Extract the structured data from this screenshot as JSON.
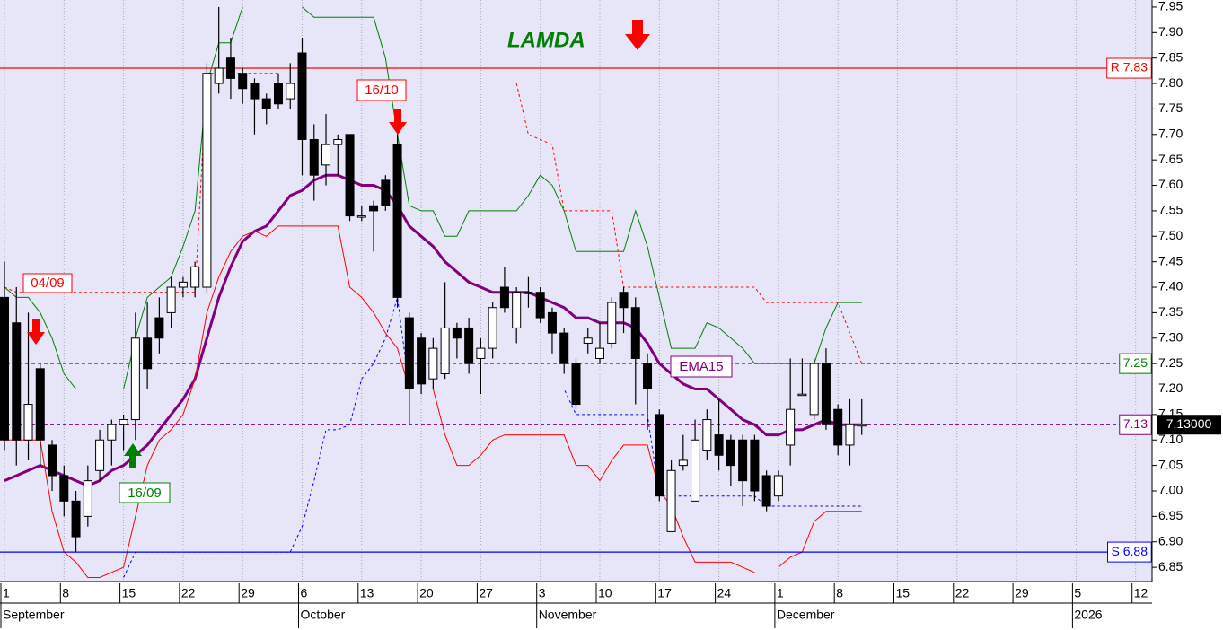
{
  "chart_data": {
    "type": "candlestick",
    "title": "LAMDA",
    "ylim": [
      6.822,
      7.964
    ],
    "yticks": [
      6.85,
      {
        "value": 6.9,
        "label": "6.90"
      },
      6.95,
      {
        "value": 7,
        "label": "7.00"
      },
      7.05,
      {
        "value": 7.1,
        "label": "7.10"
      },
      7.15,
      {
        "value": 7.2,
        "label": "7.20"
      },
      7.25,
      {
        "value": 7.3,
        "label": "7.30"
      },
      7.35,
      {
        "value": 7.4,
        "label": "7.40"
      },
      7.45,
      {
        "value": 7.5,
        "label": "7.50"
      },
      7.55,
      {
        "value": 7.6,
        "label": "7.60"
      },
      7.65,
      {
        "value": 7.7,
        "label": "7.70"
      },
      7.75,
      {
        "value": 7.8,
        "label": "7.80"
      },
      7.85,
      {
        "value": 7.9,
        "label": "7.90"
      },
      7.95
    ],
    "x_axis": [
      {
        "month": "September",
        "days": [
          "1",
          "8",
          "15",
          "22",
          "29"
        ]
      },
      {
        "month": "October",
        "days": [
          "6",
          "13",
          "20",
          "27"
        ]
      },
      {
        "month": "November",
        "days": [
          "3",
          "10",
          "17",
          "24"
        ]
      },
      {
        "month": "December",
        "days": [
          "1",
          "8",
          "15",
          "22",
          "29"
        ]
      },
      {
        "month": "2026",
        "days": [
          "5",
          "12"
        ]
      }
    ],
    "candles": {
      "open": [
        7.38,
        7.33,
        7.1,
        7.24,
        7.09,
        7.03,
        6.98,
        6.95,
        7.04,
        7.1,
        7.13,
        7.14,
        7.3,
        7.34,
        7.35,
        7.4,
        7.4,
        7.4,
        7.8,
        7.85,
        7.82,
        7.8,
        7.77,
        7.8,
        7.77,
        7.86,
        7.69,
        7.64,
        7.68,
        7.7,
        7.54,
        7.56,
        7.61,
        7.68,
        7.34,
        7.3,
        7.22,
        7.23,
        7.32,
        7.32,
        7.26,
        7.28,
        7.4,
        7.32,
        7.39,
        7.39,
        7.35,
        7.31,
        7.25,
        7.29,
        7.26,
        7.29,
        7.39,
        7.36,
        7.25,
        7.15,
        6.92,
        7.05,
        6.98,
        7.08,
        7.11,
        7.1,
        7.1,
        7.1,
        7.03,
        6.99,
        7.09,
        7.19,
        7.15,
        7.25,
        7.16,
        7.09,
        7.13
      ],
      "high": [
        7.45,
        7.4,
        7.35,
        7.25,
        7.1,
        7.05,
        7.0,
        7.05,
        7.12,
        7.14,
        7.15,
        7.35,
        7.37,
        7.38,
        7.42,
        7.42,
        7.45,
        7.84,
        7.95,
        7.89,
        7.83,
        7.81,
        7.78,
        7.82,
        7.84,
        7.89,
        7.72,
        7.74,
        7.7,
        7.7,
        7.56,
        7.57,
        7.62,
        7.7,
        7.35,
        7.31,
        7.3,
        7.41,
        7.33,
        7.34,
        7.3,
        7.37,
        7.44,
        7.4,
        7.42,
        7.4,
        7.36,
        7.32,
        7.26,
        7.32,
        7.33,
        7.38,
        7.4,
        7.38,
        7.27,
        7.16,
        7.06,
        7.11,
        7.14,
        7.16,
        7.18,
        7.11,
        7.11,
        7.11,
        7.04,
        7.04,
        7.26,
        7.26,
        7.26,
        7.28,
        7.17,
        7.18,
        7.18
      ],
      "low": [
        7.08,
        7.05,
        7.06,
        7.05,
        7.0,
        6.95,
        6.88,
        6.93,
        7.02,
        7.05,
        7.08,
        7.1,
        7.2,
        7.27,
        7.32,
        7.38,
        7.38,
        7.39,
        7.78,
        7.77,
        7.76,
        7.7,
        7.72,
        7.75,
        7.75,
        7.62,
        7.57,
        7.6,
        7.62,
        7.53,
        7.53,
        7.47,
        7.55,
        7.36,
        7.13,
        7.19,
        7.2,
        7.22,
        7.26,
        7.23,
        7.19,
        7.26,
        7.35,
        7.29,
        7.36,
        7.33,
        7.27,
        7.23,
        7.16,
        7.27,
        7.25,
        7.28,
        7.31,
        7.17,
        7.12,
        6.98,
        6.92,
        7.04,
        6.98,
        7.06,
        7.04,
        7.01,
        6.97,
        6.98,
        6.96,
        6.98,
        7.05,
        7.19,
        7.14,
        7.12,
        7.07,
        7.05,
        7.11
      ],
      "close": [
        7.1,
        7.1,
        7.17,
        7.1,
        7.03,
        6.98,
        6.91,
        7.02,
        7.1,
        7.13,
        7.14,
        7.3,
        7.24,
        7.3,
        7.4,
        7.41,
        7.44,
        7.82,
        7.83,
        7.81,
        7.79,
        7.77,
        7.75,
        7.76,
        7.8,
        7.69,
        7.62,
        7.68,
        7.69,
        7.54,
        7.54,
        7.55,
        7.56,
        7.38,
        7.2,
        7.21,
        7.28,
        7.32,
        7.3,
        7.25,
        7.28,
        7.36,
        7.36,
        7.39,
        7.39,
        7.34,
        7.31,
        7.25,
        7.17,
        7.3,
        7.28,
        7.37,
        7.36,
        7.26,
        7.2,
        6.99,
        7.04,
        7.06,
        7.1,
        7.14,
        7.07,
        7.05,
        7.02,
        7.0,
        6.97,
        7.03,
        7.16,
        7.19,
        7.25,
        7.13,
        7.09,
        7.13,
        7.13
      ]
    },
    "series": [
      {
        "name": "EMA15",
        "color": "#800080",
        "width": 3,
        "dash": false,
        "values": [
          7.02,
          7.03,
          7.04,
          7.05,
          7.04,
          7.03,
          7.02,
          7.01,
          7.02,
          7.04,
          7.05,
          7.07,
          7.09,
          7.12,
          7.15,
          7.18,
          7.22,
          7.3,
          7.38,
          7.44,
          7.49,
          7.51,
          7.52,
          7.55,
          7.58,
          7.59,
          7.61,
          7.62,
          7.62,
          7.61,
          7.6,
          7.6,
          7.59,
          7.56,
          7.52,
          7.5,
          7.48,
          7.45,
          7.43,
          7.41,
          7.4,
          7.39,
          7.39,
          7.39,
          7.39,
          7.38,
          7.37,
          7.36,
          7.34,
          7.34,
          7.33,
          7.33,
          7.33,
          7.32,
          7.29,
          7.25,
          7.23,
          7.21,
          7.2,
          7.2,
          7.18,
          7.16,
          7.14,
          7.13,
          7.11,
          7.11,
          7.12,
          7.12,
          7.13,
          7.14,
          7.13,
          7.13,
          7.13
        ]
      },
      {
        "color": "#008000",
        "width": 1,
        "dash": false,
        "values": [
          7.4,
          7.38,
          7.38,
          7.35,
          7.3,
          7.23,
          7.2,
          7.2,
          7.2,
          7.2,
          7.2,
          7.3,
          7.38,
          7.4,
          7.42,
          7.48,
          7.55,
          7.8,
          7.88,
          7.88,
          7.95,
          null,
          null,
          null,
          null,
          7.95,
          7.93,
          7.93,
          7.93,
          7.93,
          7.93,
          7.93,
          7.85,
          7.7,
          7.56,
          7.55,
          7.55,
          7.5,
          7.5,
          7.55,
          7.55,
          7.55,
          7.55,
          7.55,
          7.58,
          7.62,
          7.6,
          7.55,
          7.47,
          7.47,
          7.47,
          7.47,
          7.47,
          7.55,
          7.48,
          7.38,
          7.28,
          7.28,
          7.28,
          7.33,
          7.32,
          7.3,
          7.28,
          7.25,
          7.25,
          7.25,
          7.25,
          7.25,
          7.25,
          7.32,
          7.37,
          7.37,
          7.37
        ]
      },
      {
        "color": "#ff0000",
        "width": 1,
        "dash": false,
        "values": [
          7.1,
          7.1,
          7.1,
          7.1,
          6.96,
          6.88,
          6.86,
          6.83,
          6.83,
          6.84,
          6.85,
          6.95,
          7.05,
          7.1,
          7.12,
          7.15,
          7.22,
          7.35,
          7.42,
          7.47,
          7.5,
          7.51,
          7.5,
          7.52,
          7.52,
          7.52,
          7.52,
          7.52,
          7.52,
          7.4,
          7.38,
          7.35,
          7.31,
          7.28,
          7.2,
          7.2,
          7.2,
          7.11,
          7.05,
          7.05,
          7.07,
          7.1,
          7.11,
          7.11,
          7.11,
          7.11,
          7.11,
          7.11,
          7.05,
          7.05,
          7.02,
          7.06,
          7.09,
          7.09,
          7.09,
          7.0,
          6.97,
          6.91,
          6.86,
          6.86,
          6.86,
          6.86,
          6.85,
          6.84,
          null,
          6.85,
          6.87,
          6.88,
          6.94,
          6.96,
          6.96,
          6.96,
          6.96
        ]
      },
      {
        "color": "#ff0000",
        "width": 1,
        "dash": true,
        "values": [
          7.4,
          7.39,
          7.39,
          7.39,
          7.39,
          7.39,
          7.39,
          7.39,
          7.39,
          7.39,
          7.39,
          7.39,
          7.39,
          7.39,
          7.39,
          7.39,
          7.39,
          7.82,
          7.82,
          7.82,
          7.82,
          7.82,
          7.82,
          7.82,
          null,
          null,
          null,
          null,
          null,
          null,
          null,
          null,
          null,
          null,
          null,
          null,
          null,
          null,
          null,
          null,
          null,
          null,
          null,
          7.8,
          7.7,
          7.69,
          7.68,
          7.55,
          7.55,
          7.55,
          7.55,
          7.55,
          7.4,
          7.4,
          7.4,
          7.4,
          7.4,
          7.4,
          7.4,
          7.4,
          7.4,
          7.4,
          7.4,
          7.4,
          7.37,
          7.37,
          7.37,
          7.37,
          7.37,
          7.37,
          7.37,
          7.31,
          7.25
        ]
      },
      {
        "color": "#0000ff",
        "width": 1,
        "dash": true,
        "values": [
          null,
          null,
          null,
          null,
          null,
          null,
          null,
          null,
          null,
          null,
          6.83,
          6.88,
          6.88,
          6.88,
          6.88,
          6.88,
          6.88,
          6.88,
          6.88,
          6.88,
          6.88,
          6.88,
          6.88,
          6.88,
          6.88,
          6.93,
          7.02,
          7.12,
          7.12,
          7.13,
          7.22,
          7.25,
          7.3,
          7.38,
          7.2,
          7.2,
          7.2,
          7.2,
          7.2,
          7.2,
          7.2,
          7.2,
          7.2,
          7.2,
          7.2,
          7.2,
          7.2,
          7.2,
          7.15,
          7.15,
          7.15,
          7.15,
          7.15,
          7.15,
          7.15,
          6.99,
          6.99,
          6.99,
          6.99,
          6.99,
          6.99,
          6.99,
          6.99,
          6.99,
          6.97,
          6.97,
          6.97,
          6.97,
          6.97,
          6.97,
          6.97,
          6.97,
          6.97
        ]
      }
    ],
    "levels": [
      {
        "label": "R 7.83",
        "value": 7.83,
        "color": "#ff0000",
        "dash": false
      },
      {
        "label": "S 6.88",
        "value": 6.88,
        "color": "#0000ff",
        "dash": false
      },
      {
        "label": "7.25",
        "value": 7.25,
        "color": "#008000",
        "dash": true
      },
      {
        "label": "7.13",
        "value": 7.13,
        "color": "#800080",
        "dash": true
      }
    ],
    "last_price": {
      "value": 7.13,
      "label": "7.13000"
    },
    "annotations": [
      "04/09",
      "16/09",
      "16/10"
    ],
    "grid": true
  }
}
